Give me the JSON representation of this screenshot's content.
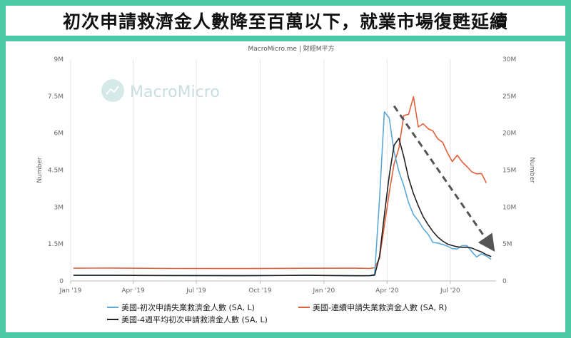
{
  "header": {
    "title": "初次申請救濟金人數降至百萬以下，就業市場復甦延續"
  },
  "source": "MacroMicro.me | 財經M平方",
  "watermark": "MacroMicro",
  "colors": {
    "initial": "#5aa9d6",
    "continuing": "#e0603a",
    "avg4w": "#222222",
    "trend": "#555555",
    "accent": "#4bc9a6"
  },
  "chart_data": {
    "type": "line",
    "title": "初次申請救濟金人數降至百萬以下，就業市場復甦延續",
    "x_ticks": [
      "Jan '19",
      "Apr '19",
      "Jul '19",
      "Oct '19",
      "Jan '20",
      "Apr '20",
      "Jul '20"
    ],
    "x_tick_dates": [
      "2019-01-01",
      "2019-04-01",
      "2019-07-01",
      "2019-10-01",
      "2020-01-01",
      "2020-04-01",
      "2020-07-01"
    ],
    "x_range": [
      "2019-01-01",
      "2020-09-05"
    ],
    "y_left": {
      "label": "Number",
      "ylim": [
        0,
        9000000
      ],
      "ticks": [
        "0",
        "1.5M",
        "3M",
        "4.5M",
        "6M",
        "7.5M",
        "9M"
      ],
      "tick_values": [
        0,
        1500000,
        3000000,
        4500000,
        6000000,
        7500000,
        9000000
      ]
    },
    "y_right": {
      "label": "Number",
      "ylim": [
        0,
        30000000
      ],
      "ticks": [
        "0",
        "5M",
        "10M",
        "15M",
        "20M",
        "25M",
        "30M"
      ],
      "tick_values": [
        0,
        5000000,
        10000000,
        15000000,
        20000000,
        25000000,
        30000000
      ]
    },
    "grid": "vertical",
    "legend_position": "bottom",
    "series": [
      {
        "name": "美國-初次申請失業救濟金人數 (SA, L)",
        "axis": "left",
        "color": "#5aa9d6",
        "points": [
          [
            "2019-01-05",
            230000
          ],
          [
            "2019-03-02",
            225000
          ],
          [
            "2019-06-01",
            222000
          ],
          [
            "2019-09-07",
            215000
          ],
          [
            "2019-12-07",
            230000
          ],
          [
            "2020-02-15",
            215000
          ],
          [
            "2020-03-07",
            211000
          ],
          [
            "2020-03-14",
            282000
          ],
          [
            "2020-03-21",
            3307000
          ],
          [
            "2020-03-28",
            6867000
          ],
          [
            "2020-04-04",
            6615000
          ],
          [
            "2020-04-11",
            5237000
          ],
          [
            "2020-04-18",
            4442000
          ],
          [
            "2020-04-25",
            3867000
          ],
          [
            "2020-05-02",
            3176000
          ],
          [
            "2020-05-09",
            2687000
          ],
          [
            "2020-05-16",
            2446000
          ],
          [
            "2020-05-23",
            2123000
          ],
          [
            "2020-05-30",
            1897000
          ],
          [
            "2020-06-06",
            1566000
          ],
          [
            "2020-06-13",
            1540000
          ],
          [
            "2020-06-20",
            1482000
          ],
          [
            "2020-06-27",
            1413000
          ],
          [
            "2020-07-04",
            1310000
          ],
          [
            "2020-07-11",
            1300000
          ],
          [
            "2020-07-18",
            1435000
          ],
          [
            "2020-07-25",
            1434000
          ],
          [
            "2020-08-01",
            1191000
          ],
          [
            "2020-08-08",
            971000
          ],
          [
            "2020-08-15",
            1104000
          ],
          [
            "2020-08-22",
            1011000
          ],
          [
            "2020-08-29",
            881000
          ]
        ]
      },
      {
        "name": "美國-連續申請失業救濟金人數 (SA, R)",
        "axis": "right",
        "color": "#e0603a",
        "points": [
          [
            "2019-01-05",
            1730000
          ],
          [
            "2019-03-02",
            1750000
          ],
          [
            "2019-06-01",
            1690000
          ],
          [
            "2019-09-07",
            1680000
          ],
          [
            "2019-12-07",
            1720000
          ],
          [
            "2020-02-15",
            1730000
          ],
          [
            "2020-03-07",
            1702000
          ],
          [
            "2020-03-14",
            1784000
          ],
          [
            "2020-03-21",
            3059000
          ],
          [
            "2020-03-28",
            7446000
          ],
          [
            "2020-04-04",
            11914000
          ],
          [
            "2020-04-11",
            15819000
          ],
          [
            "2020-04-18",
            17993000
          ],
          [
            "2020-04-25",
            22377000
          ],
          [
            "2020-05-02",
            22548000
          ],
          [
            "2020-05-09",
            24912000
          ],
          [
            "2020-05-16",
            20838000
          ],
          [
            "2020-05-23",
            21268000
          ],
          [
            "2020-05-30",
            20606000
          ],
          [
            "2020-06-06",
            20289000
          ],
          [
            "2020-06-13",
            19231000
          ],
          [
            "2020-06-20",
            18760000
          ],
          [
            "2020-06-27",
            17338000
          ],
          [
            "2020-07-04",
            16151000
          ],
          [
            "2020-07-11",
            17018000
          ],
          [
            "2020-07-18",
            16107000
          ],
          [
            "2020-07-25",
            15486000
          ],
          [
            "2020-08-01",
            14759000
          ],
          [
            "2020-08-08",
            14492000
          ],
          [
            "2020-08-15",
            14535000
          ],
          [
            "2020-08-22",
            13254000
          ]
        ]
      },
      {
        "name": "美國-4週平均初次申請救濟金人數 (SA, L)",
        "axis": "left",
        "color": "#222222",
        "points": [
          [
            "2019-01-05",
            230000
          ],
          [
            "2019-03-02",
            228000
          ],
          [
            "2019-06-01",
            220000
          ],
          [
            "2019-09-07",
            214000
          ],
          [
            "2019-12-07",
            228000
          ],
          [
            "2020-02-15",
            212000
          ],
          [
            "2020-03-07",
            213000
          ],
          [
            "2020-03-14",
            232000
          ],
          [
            "2020-03-21",
            998000
          ],
          [
            "2020-03-28",
            2667000
          ],
          [
            "2020-04-04",
            4266000
          ],
          [
            "2020-04-11",
            5507000
          ],
          [
            "2020-04-18",
            5790000
          ],
          [
            "2020-04-25",
            5040000
          ],
          [
            "2020-05-02",
            4170000
          ],
          [
            "2020-05-09",
            3543000
          ],
          [
            "2020-05-16",
            3044000
          ],
          [
            "2020-05-23",
            2608000
          ],
          [
            "2020-05-30",
            2288000
          ],
          [
            "2020-06-06",
            2008000
          ],
          [
            "2020-06-13",
            1782000
          ],
          [
            "2020-06-20",
            1622000
          ],
          [
            "2020-06-27",
            1500000
          ],
          [
            "2020-07-04",
            1436000
          ],
          [
            "2020-07-11",
            1386000
          ],
          [
            "2020-07-18",
            1365000
          ],
          [
            "2020-07-25",
            1370000
          ],
          [
            "2020-08-01",
            1337000
          ],
          [
            "2020-08-08",
            1250000
          ],
          [
            "2020-08-15",
            1175000
          ],
          [
            "2020-08-22",
            1068000
          ],
          [
            "2020-08-29",
            991000
          ]
        ]
      }
    ],
    "annotations": [
      {
        "type": "trend-arrow",
        "style": "dashed",
        "axis": "left",
        "from": [
          "2020-04-11",
          7100000
        ],
        "to": [
          "2020-08-29",
          1400000
        ]
      }
    ]
  }
}
